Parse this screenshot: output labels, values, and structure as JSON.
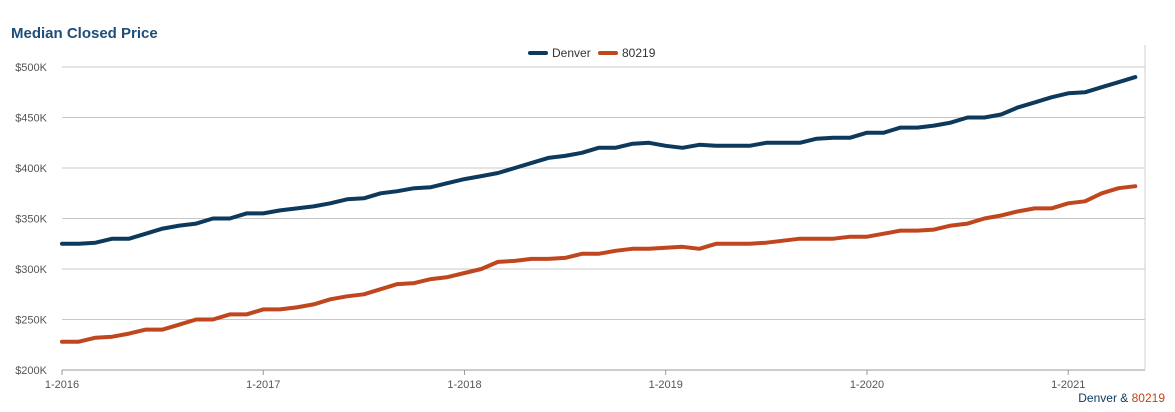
{
  "chart_data": {
    "type": "line",
    "title": "Median Closed Price",
    "xlabel": "",
    "ylabel": "",
    "ylim": [
      200000,
      500000
    ],
    "yticks": [
      {
        "value": 200000,
        "label": "$200K"
      },
      {
        "value": 250000,
        "label": "$250K"
      },
      {
        "value": 300000,
        "label": "$300K"
      },
      {
        "value": 350000,
        "label": "$350K"
      },
      {
        "value": 400000,
        "label": "$400K"
      },
      {
        "value": 450000,
        "label": "$450K"
      },
      {
        "value": 500000,
        "label": "$500K"
      }
    ],
    "xticks": [
      {
        "value": "2016-01",
        "label": "1-2016"
      },
      {
        "value": "2017-01",
        "label": "1-2017"
      },
      {
        "value": "2018-01",
        "label": "1-2018"
      },
      {
        "value": "2019-01",
        "label": "1-2019"
      },
      {
        "value": "2020-01",
        "label": "1-2020"
      },
      {
        "value": "2021-01",
        "label": "1-2021"
      }
    ],
    "x": [
      "2016-01",
      "2016-02",
      "2016-03",
      "2016-04",
      "2016-05",
      "2016-06",
      "2016-07",
      "2016-08",
      "2016-09",
      "2016-10",
      "2016-11",
      "2016-12",
      "2017-01",
      "2017-02",
      "2017-03",
      "2017-04",
      "2017-05",
      "2017-06",
      "2017-07",
      "2017-08",
      "2017-09",
      "2017-10",
      "2017-11",
      "2017-12",
      "2018-01",
      "2018-02",
      "2018-03",
      "2018-04",
      "2018-05",
      "2018-06",
      "2018-07",
      "2018-08",
      "2018-09",
      "2018-10",
      "2018-11",
      "2018-12",
      "2019-01",
      "2019-02",
      "2019-03",
      "2019-04",
      "2019-05",
      "2019-06",
      "2019-07",
      "2019-08",
      "2019-09",
      "2019-10",
      "2019-11",
      "2019-12",
      "2020-01",
      "2020-02",
      "2020-03",
      "2020-04",
      "2020-05",
      "2020-06",
      "2020-07",
      "2020-08",
      "2020-09",
      "2020-10",
      "2020-11",
      "2020-12",
      "2021-01",
      "2021-02",
      "2021-03",
      "2021-04",
      "2021-05"
    ],
    "series": [
      {
        "name": "Denver",
        "color": "#0d3a5c",
        "values": [
          325000,
          325000,
          326000,
          330000,
          330000,
          335000,
          340000,
          343000,
          345000,
          350000,
          350000,
          355000,
          355000,
          358000,
          360000,
          362000,
          365000,
          369000,
          370000,
          375000,
          377000,
          380000,
          381000,
          385000,
          389000,
          392000,
          395000,
          400000,
          405000,
          410000,
          412000,
          415000,
          420000,
          420000,
          424000,
          425000,
          422000,
          420000,
          423000,
          422000,
          422000,
          422000,
          425000,
          425000,
          425000,
          429000,
          430000,
          430000,
          435000,
          435000,
          440000,
          440000,
          442000,
          445000,
          450000,
          450000,
          453000,
          460000,
          465000,
          470000,
          474000,
          475000,
          480000,
          485000,
          490000
        ]
      },
      {
        "name": "80219",
        "color": "#c0461d",
        "values": [
          228000,
          228000,
          232000,
          233000,
          236000,
          240000,
          240000,
          245000,
          250000,
          250000,
          255000,
          255000,
          260000,
          260000,
          262000,
          265000,
          270000,
          273000,
          275000,
          280000,
          285000,
          286000,
          290000,
          292000,
          296000,
          300000,
          307000,
          308000,
          310000,
          310000,
          311000,
          315000,
          315000,
          318000,
          320000,
          320000,
          321000,
          322000,
          320000,
          325000,
          325000,
          325000,
          326000,
          328000,
          330000,
          330000,
          330000,
          332000,
          332000,
          335000,
          338000,
          338000,
          339000,
          343000,
          345000,
          350000,
          353000,
          357000,
          360000,
          360000,
          365000,
          367000,
          375000,
          380000,
          382000
        ]
      }
    ],
    "grid": true,
    "legend": "top-center",
    "footer": {
      "part1": "Denver",
      "sep": " & ",
      "part2": "80219"
    }
  }
}
